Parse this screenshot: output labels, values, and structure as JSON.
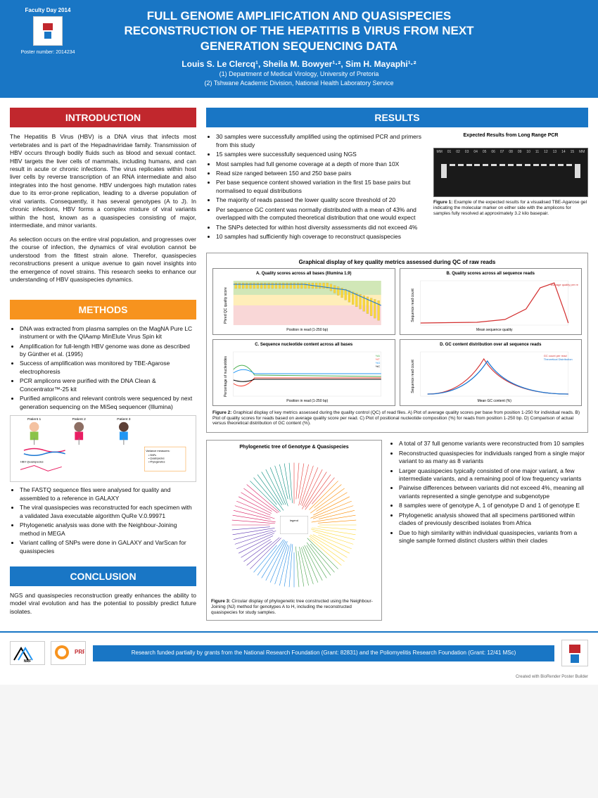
{
  "header": {
    "faculty_day": "Faculty Day 2014",
    "poster_number": "Poster number: 2014234",
    "title": "FULL GENOME AMPLIFICATION AND QUASISPECIES RECONSTRUCTION OF THE HEPATITIS B VIRUS FROM NEXT GENERATION SEQUENCING DATA",
    "authors": "Louis S. Le Clercq¹, Sheila M. Bowyer¹·², Sim H. Mayaphi¹·²",
    "affil1": "(1) Department of Medical Virology, University of Pretoria",
    "affil2": "(2) Tshwane Academic Division, National Health Laboratory Service"
  },
  "sections": {
    "intro_title": "INTRODUCTION",
    "methods_title": "METHODS",
    "conclusion_title": "CONCLUSION",
    "results_title": "RESULTS"
  },
  "intro": {
    "p1": "The Hepatitis B Virus (HBV) is a DNA virus that infects most vertebrates and is part of the Hepadnaviridae family. Transmission of HBV occurs through bodily fluids such as blood and sexual contact. HBV targets the liver cells of mammals, including humans, and can result in acute or chronic infections. The virus replicates within host liver cells by reverse transcription of an RNA intermediate and also integrates into the host genome. HBV undergoes high mutation rates due to its error-prone replication, leading to a diverse population of viral variants. Consequently, it has several genotypes (A to J). In chronic infections, HBV forms a complex mixture of viral variants within the host, known as a quasispecies consisting of major, intermediate, and minor variants.",
    "p2": "As selection occurs on the entire viral population, and progresses over the course of infection, the dynamics of viral evolution cannot be understood from the fittest strain alone. Therefor, quasispecies reconstructions present a unique avenue to gain novel insights into the emergence of novel strains. This research seeks to enhance our understanding of HBV quasispecies dynamics."
  },
  "methods": {
    "list1": [
      "DNA was extracted from plasma samples on the MagNA Pure LC instrument or with the QIAamp MinElute Virus Spin kit",
      "Amplification for full-length HBV genome was done as described by Günther et al. (1995)",
      "Success of amplification was monitored by TBE-Agarose electrophoresis",
      "PCR amplicons were purified with the DNA Clean & Concentrator™-25 kit",
      "Purified amplicons and relevant controls were sequenced by next generation sequencing on the MiSeq sequencer (Illumina)"
    ],
    "list2": [
      "The FASTQ sequence files were analysed for quality and assembled to a reference in GALAXY",
      "The viral quasispecies was reconstructed for each specimen with a validated Java executable algorithm QuRe V.0.99971",
      "Phylogenetic analysis was done with the Neighbour-Joining method in MEGA",
      "Variant calling of SNPs were done in GALAXY and VarScan for quasispecies"
    ],
    "diagram": {
      "patients": [
        "Patient 1",
        "Patient 2",
        "Patient 3"
      ],
      "labels": [
        "HBV DNA",
        "HBV Quasispecies",
        "Variance measures:",
        "Inter-host variation (NGB inherent)",
        "Intra-host variation (NGS)"
      ]
    }
  },
  "conclusion": {
    "text": "NGS and quasispecies reconstruction greatly enhances the ability to model viral evolution and has the potential to possibly predict future isolates."
  },
  "results": {
    "list1": [
      "30 samples were successfully amplified using the optimised PCR and primers from this study",
      "15 samples were successfully sequenced using NGS",
      "Most samples had full genome coverage at a depth of more than 10X",
      "Read size ranged between 150 and 250 base pairs",
      "Per base sequence content showed variation in the first 15 base pairs but normalised to equal distributions",
      "The majority of reads passed the lower quality score threshold of 20",
      "Per sequence GC content was normally distributed with a mean of 43% and overlapped with the computed theoretical distribution that one would expect",
      "The SNPs detected for within host diversity assessments did not exceed 4%",
      "10 samples had sufficiently high coverage to reconstruct quasispecies"
    ],
    "gel_title": "Expected Results from Long Range PCR",
    "gel_lanes": [
      "MM",
      "01",
      "02",
      "03",
      "04",
      "05",
      "06",
      "07",
      "08",
      "09",
      "10",
      "11",
      "12",
      "13",
      "14",
      "15",
      "MM"
    ],
    "fig1_caption": "Figure 1: Example of the expected results for a visualised TBE-Agarose gel indicating the molecular marker on either side with the amplicons for samples fully resolved at approximately 3.2 kilo basepair.",
    "fig2_title": "Graphical display of key quality metrics assessed during QC of raw reads",
    "fig2_panels": {
      "a": "A. Quality scores across all bases (Illumina 1.9)",
      "b": "B. Quality scores across all sequence reads",
      "c": "C. Sequence nucleotide content across all bases",
      "d": "D. GC content distribution over all sequence reads",
      "a_ylabel": "Phred QC quality score",
      "a_xlabel": "Position in read (1-250 bp)",
      "b_ylabel": "Sequence read count",
      "b_xlabel": "Mean sequence quality",
      "c_ylabel": "Percentage of nucleotides",
      "c_xlabel": "Position in read (1-250 bp)",
      "d_ylabel": "Sequence read count",
      "d_xlabel": "Mean GC content (%)",
      "a_colors": {
        "good": "#8bc34a",
        "warn": "#ffd54f",
        "fail": "#ef9a9a",
        "box": "#fdd835",
        "line": "#1976d2"
      },
      "b_line_color": "#d32f2f",
      "c_colors": {
        "A": "#4caf50",
        "T": "#f44336",
        "G": "#2196f3",
        "C": "#000000"
      },
      "d_colors": {
        "actual": "#d32f2f",
        "theoretical": "#1976d2"
      }
    },
    "fig2_caption": "Figure 2: Graphical display of key metrics assessed during the quality control (QC) of read files. A) Plot of average quality scores per base from position 1-250 for individual reads. B) Plot of quality scores for reads based on average quality score per read. C) Plot of positional nucleotide composition (%) for reads from position 1-250 bp. D) Comparison of actual versus theoretical distribution of GC content (%).",
    "phylo_title": "Phylogenetic tree of Genotype & Quasispecies",
    "fig3_caption": "Figure 3: Circular display of phylogenetic tree constructed using the Neighbour-Joining (NJ) method for genotypes A to H, including the reconstructed quasispecies for study samples.",
    "list2": [
      "A total of 37 full genome variants were reconstructed from 10 samples",
      "Reconstructed quasispecies for individuals ranged from a single major variant to as many as 8 variants",
      "Larger quasispecies typically consisted of one major variant, a few intermediate variants, and a remaining pool of low frequency variants",
      "Pairwise differences between variants did not exceed 4%, meaning all variants represented a single genotype and subgenotype",
      "8 samples were of genotype A, 1 of genotype D and 1 of genotype E",
      "Phylogenetic analysis showed that all specimens partitioned within clades of previously described isolates from Africa",
      "Due to high similarity within individual quasispecies, variants from a single sample formed distinct clusters within their clades"
    ],
    "phylo_colors": [
      "#e53935",
      "#fb8c00",
      "#fdd835",
      "#43a047",
      "#1e88e5",
      "#5e35b1",
      "#d81b60",
      "#00897b"
    ]
  },
  "footer": {
    "logos": [
      "NRF",
      "PRF"
    ],
    "text": "Research funded partially by grants from the National Research Foundation (Grant: 82831) and the Poliomyelitis Research Foundation (Grant: 12/41 MSc)",
    "credit": "Created with BioRender Poster Builder"
  }
}
